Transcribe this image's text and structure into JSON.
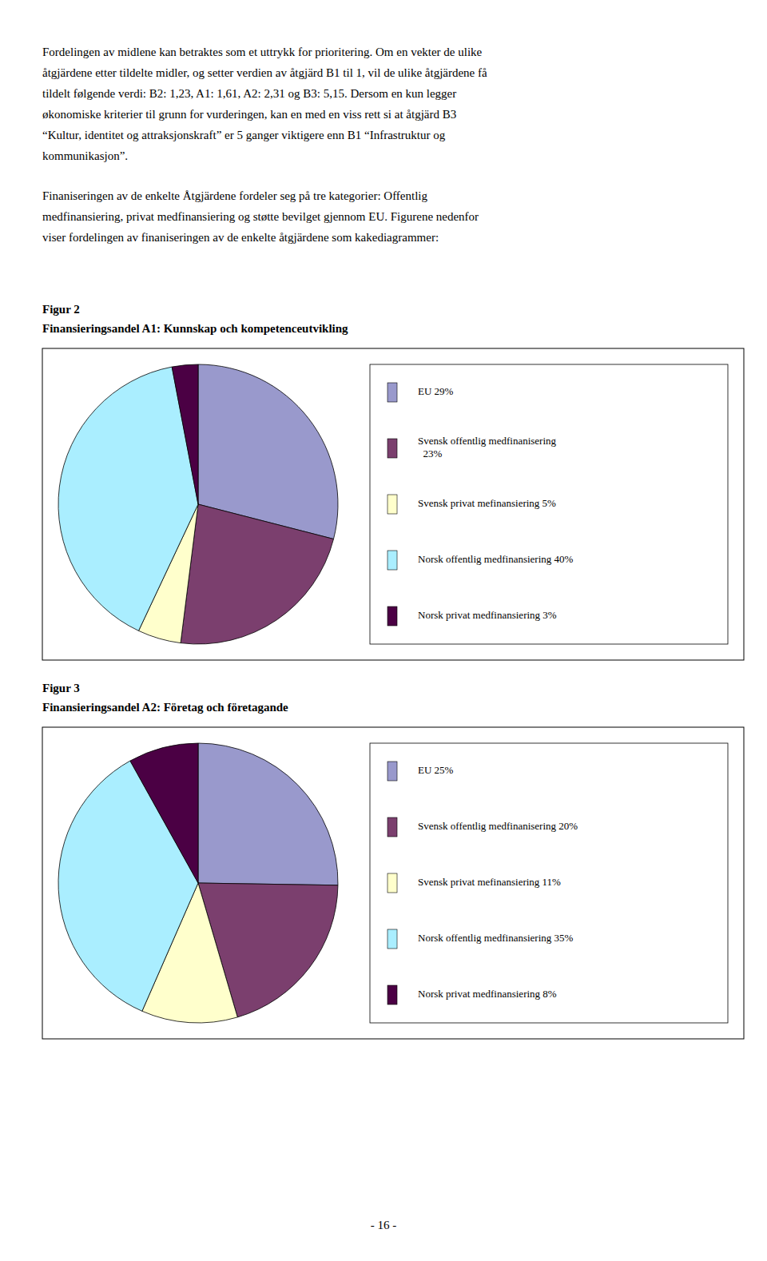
{
  "paragraphs": [
    [
      "Fordelingen av midlene kan betraktes som et uttrykk for prioritering. Om en vekter de ulike",
      "åtgjärdene etter tildelte midler, og setter verdien av åtgjärd B1 til 1, vil de ulike åtgjärdene få",
      "tildelt følgende verdi: B2: 1,23, A1: 1,61, A2: 2,31 og B3: 5,15.  Dersom en kun legger",
      "økonomiske kriterier til grunn for vurderingen, kan en med en viss rett si at åtgjärd B3",
      "“Kultur, identitet og attraksjonskraft” er 5 ganger viktigere enn B1 “Infrastruktur og",
      "kommunikasjon”."
    ],
    [
      "Finaniseringen av de enkelte Åtgjärdene fordeler seg på tre kategorier: Offentlig",
      "medfinansiering, privat medfinansiering og støtte bevilget gjennom EU. Figurene nedenfor",
      "viser fordelingen av finaniseringen av de enkelte åtgjärdene som kakediagrammer:"
    ]
  ],
  "page_number": "- 16 -",
  "chart_data": [
    {
      "type": "pie",
      "figure_label": "Figur 2",
      "title": "Finansieringsandel A1: Kunnskap och kompetenceutvikling",
      "categories": [
        "EU 29%",
        "Svensk offentlig medfinanisering\n  23%",
        "Svensk privat mefinansiering 5%",
        "Norsk offentlig medfinansiering 40%",
        "Norsk privat medfinansiering 3%"
      ],
      "values": [
        29,
        23,
        5,
        40,
        3
      ],
      "colors": [
        "#9999cc",
        "#7b3f6e",
        "#ffffcc",
        "#aaeeff",
        "#4b0044"
      ],
      "legend": "right"
    },
    {
      "type": "pie",
      "figure_label": "Figur 3",
      "title": "Finansieringsandel A2: Företag och företagande",
      "categories": [
        "EU 25%",
        "Svensk offentlig medfinanisering 20%",
        "Svensk privat mefinansiering 11%",
        "Norsk offentlig medfinansiering 35%",
        "Norsk privat medfinansiering 8%"
      ],
      "values": [
        25,
        20,
        11,
        35,
        8
      ],
      "colors": [
        "#9999cc",
        "#7b3f6e",
        "#ffffcc",
        "#aaeeff",
        "#4b0044"
      ],
      "legend": "right"
    }
  ]
}
